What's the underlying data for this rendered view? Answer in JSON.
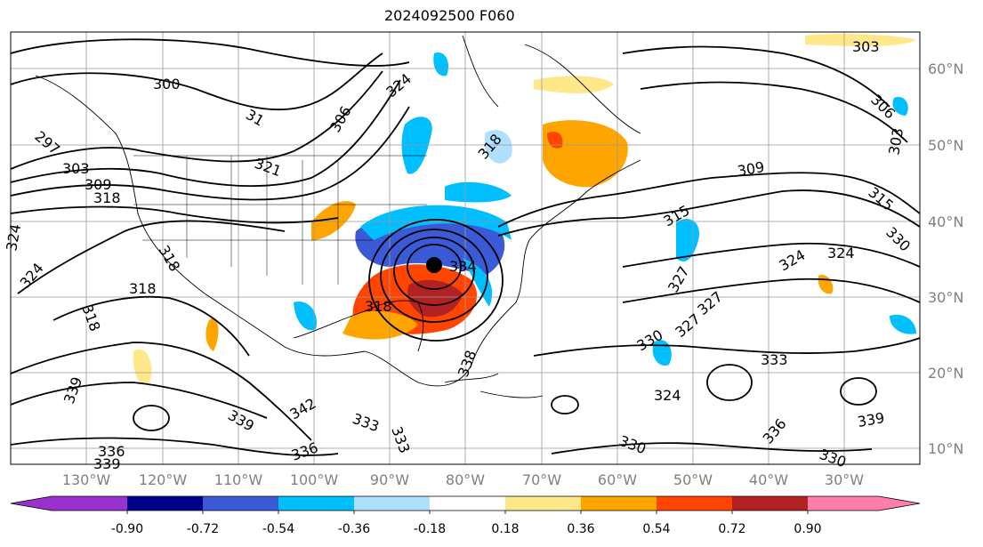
{
  "title": "2024092500 F060",
  "map": {
    "lon_labels": [
      "130°W",
      "120°W",
      "110°W",
      "100°W",
      "90°W",
      "80°W",
      "70°W",
      "60°W",
      "50°W",
      "40°W",
      "30°W"
    ],
    "lat_labels": [
      "60°N",
      "50°N",
      "40°N",
      "30°N",
      "20°N",
      "10°N"
    ],
    "contour_labels": [
      "300",
      "297",
      "303",
      "309",
      "318",
      "324",
      "324",
      "318",
      "318",
      "318",
      "306",
      "324",
      "31",
      "321",
      "318",
      "315",
      "309",
      "303",
      "306",
      "303",
      "315",
      "330",
      "324",
      "324",
      "327",
      "330",
      "327",
      "333",
      "327",
      "324",
      "339",
      "339",
      "336",
      "333",
      "339",
      "342",
      "333",
      "336",
      "330",
      "336",
      "330",
      "339",
      "336",
      "336",
      "303",
      "318",
      "334",
      "338",
      "318"
    ],
    "storm_center_marker": "storm-center-dot"
  },
  "colorbar": {
    "tick_labels": [
      "-0.90",
      "-0.72",
      "-0.54",
      "-0.36",
      "-0.18",
      "0.18",
      "0.36",
      "0.54",
      "0.72",
      "0.90"
    ],
    "colors": [
      "#9932cc",
      "#00008b",
      "#3b5bd6",
      "#00bfff",
      "#b0e0ff",
      "#ffffff",
      "#ffe88a",
      "#ffa500",
      "#ff4500",
      "#b22222",
      "#ff7faa"
    ]
  }
}
